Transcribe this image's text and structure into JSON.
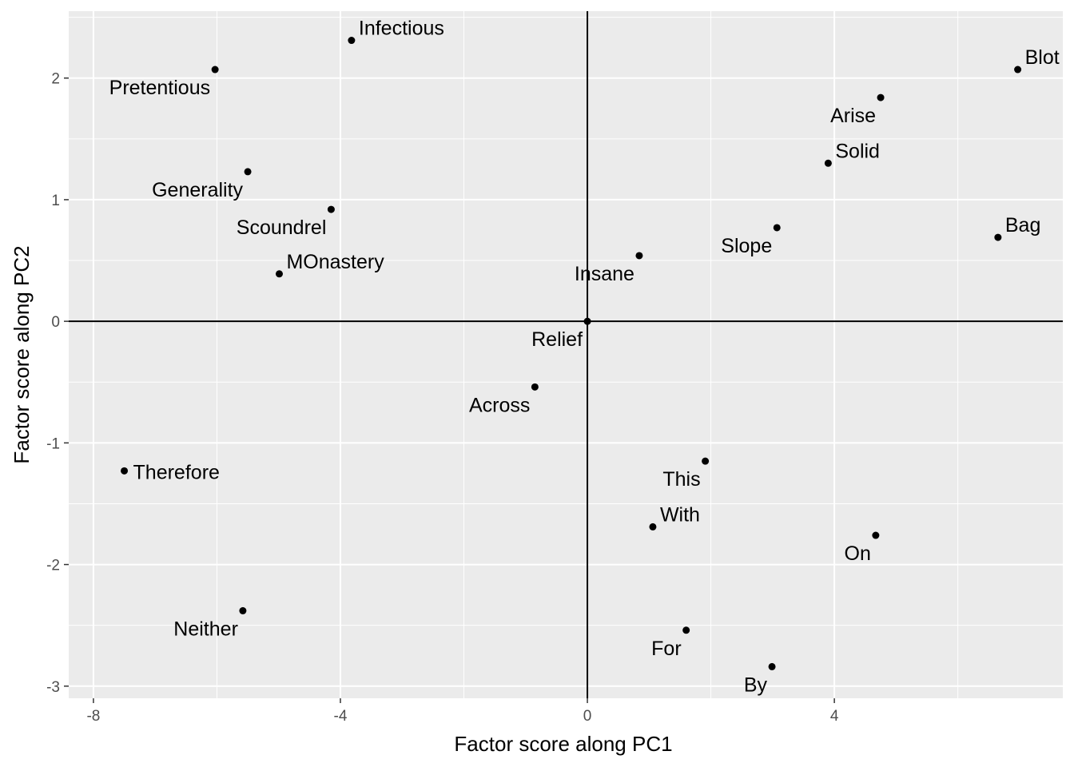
{
  "chart_data": {
    "type": "scatter",
    "title": "",
    "xlabel": "Factor score along PC1",
    "ylabel": "Factor score along PC2",
    "xlim": [
      -8.4,
      7.7
    ],
    "ylim": [
      -3.1,
      2.55
    ],
    "x_ticks": [
      -8,
      -4,
      0,
      4
    ],
    "y_ticks": [
      -3,
      -2,
      -1,
      0,
      1,
      2
    ],
    "x_tick_labels": [
      "-8",
      "-4",
      "0",
      "4"
    ],
    "y_tick_labels": [
      "-3",
      "-2",
      "-1",
      "0",
      "1",
      "2"
    ],
    "grid": true,
    "reference_lines": {
      "x": 0,
      "y": 0
    },
    "colors": {
      "panel": "#ebebeb",
      "grid": "#ffffff",
      "point": "#000000",
      "reference": "#000000",
      "tick_text": "#4d4d4d"
    },
    "points": [
      {
        "label": "Infectious",
        "x": -3.82,
        "y": 2.31,
        "label_pos": "above-right"
      },
      {
        "label": "Pretentious",
        "x": -6.03,
        "y": 2.07,
        "label_pos": "below-left"
      },
      {
        "label": "Generality",
        "x": -5.5,
        "y": 1.23,
        "label_pos": "below-left"
      },
      {
        "label": "Scoundrel",
        "x": -4.15,
        "y": 0.92,
        "label_pos": "below-left"
      },
      {
        "label": "MOnastery",
        "x": -4.99,
        "y": 0.39,
        "label_pos": "above-right"
      },
      {
        "label": "Therefore",
        "x": -7.5,
        "y": -1.23,
        "label_pos": "right"
      },
      {
        "label": "Neither",
        "x": -5.58,
        "y": -2.38,
        "label_pos": "below-left"
      },
      {
        "label": "Across",
        "x": -0.85,
        "y": -0.54,
        "label_pos": "below-left"
      },
      {
        "label": "Relief",
        "x": 0.0,
        "y": 0.0,
        "label_pos": "below-left"
      },
      {
        "label": "Insane",
        "x": 0.84,
        "y": 0.54,
        "label_pos": "below-left"
      },
      {
        "label": "Slope",
        "x": 3.07,
        "y": 0.77,
        "label_pos": "below-left"
      },
      {
        "label": "Solid",
        "x": 3.9,
        "y": 1.3,
        "label_pos": "above-right"
      },
      {
        "label": "Arise",
        "x": 4.75,
        "y": 1.84,
        "label_pos": "below-left"
      },
      {
        "label": "Blot",
        "x": 6.97,
        "y": 2.07,
        "label_pos": "above-right"
      },
      {
        "label": "Bag",
        "x": 6.65,
        "y": 0.69,
        "label_pos": "above-right"
      },
      {
        "label": "This",
        "x": 1.91,
        "y": -1.15,
        "label_pos": "below-left"
      },
      {
        "label": "With",
        "x": 1.06,
        "y": -1.69,
        "label_pos": "above-right"
      },
      {
        "label": "On",
        "x": 4.67,
        "y": -1.76,
        "label_pos": "below-left"
      },
      {
        "label": "For",
        "x": 1.6,
        "y": -2.54,
        "label_pos": "below-left"
      },
      {
        "label": "By",
        "x": 2.99,
        "y": -2.84,
        "label_pos": "below-left"
      }
    ]
  }
}
